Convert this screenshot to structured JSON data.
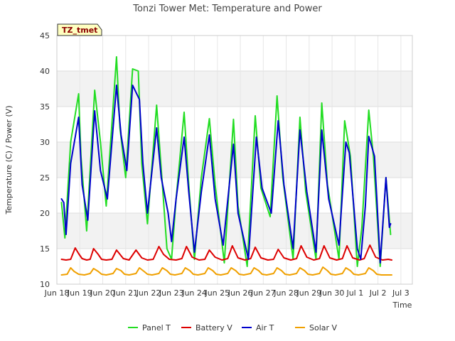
{
  "chart_data": {
    "type": "line",
    "title": "Tonzi Tower Met: Temperature and Power",
    "xlabel": "Time",
    "ylabel": "Temperature (C) / Power (V)",
    "ylim": [
      10,
      45
    ],
    "yticks": [
      10,
      15,
      20,
      25,
      30,
      35,
      40,
      45
    ],
    "xlim": [
      0,
      15.5
    ],
    "xticks": [
      {
        "pos": 0,
        "label": "Jun 18"
      },
      {
        "pos": 1,
        "label": "Jun 19"
      },
      {
        "pos": 2,
        "label": "Jun 20"
      },
      {
        "pos": 3,
        "label": "Jun 21"
      },
      {
        "pos": 4,
        "label": "Jun 22"
      },
      {
        "pos": 5,
        "label": "Jun 23"
      },
      {
        "pos": 6,
        "label": "Jun 24"
      },
      {
        "pos": 7,
        "label": "Jun 25"
      },
      {
        "pos": 8,
        "label": "Jun 26"
      },
      {
        "pos": 9,
        "label": "Jun 27"
      },
      {
        "pos": 10,
        "label": "Jun 28"
      },
      {
        "pos": 11,
        "label": "Jun 29"
      },
      {
        "pos": 12,
        "label": "Jun 30"
      },
      {
        "pos": 13,
        "label": "Jul 1"
      },
      {
        "pos": 14,
        "label": "Jul 2"
      },
      {
        "pos": 15,
        "label": "Jul 3"
      }
    ],
    "grid": true,
    "annotation": "TZ_tmet",
    "series": [
      {
        "name": "Panel T",
        "color": "#22dd22",
        "x": [
          0.2,
          0.35,
          0.6,
          0.95,
          1.05,
          1.3,
          1.65,
          1.9,
          2.15,
          2.6,
          2.75,
          3.0,
          3.3,
          3.55,
          3.7,
          3.95,
          4.35,
          4.6,
          4.8,
          5.0,
          5.2,
          5.55,
          5.75,
          6.0,
          6.3,
          6.65,
          6.9,
          7.3,
          7.7,
          7.9,
          8.3,
          8.65,
          8.9,
          9.3,
          9.6,
          9.85,
          10.3,
          10.6,
          10.85,
          11.3,
          11.55,
          11.8,
          12.3,
          12.55,
          12.8,
          13.1,
          13.3,
          13.6,
          13.8,
          14.1,
          14.35,
          14.55
        ],
        "y": [
          21.5,
          16.5,
          30,
          36.8,
          28,
          17.5,
          37.3,
          30,
          21,
          42,
          32,
          25,
          40.3,
          40,
          27,
          18.5,
          35.2,
          24,
          15,
          13.5,
          22,
          34.2,
          24,
          13.5,
          25,
          33.3,
          24,
          13,
          33.2,
          21,
          12.5,
          33.7,
          23.5,
          19.5,
          36.5,
          25,
          13.5,
          33.5,
          23,
          13.5,
          35.5,
          24,
          13.5,
          33,
          28,
          12.5,
          18,
          34.5,
          28,
          12.5,
          25,
          17
        ]
      },
      {
        "name": "Battery V",
        "color": "#dd0000",
        "x": [
          0.2,
          0.4,
          0.6,
          0.8,
          0.95,
          1.1,
          1.3,
          1.45,
          1.6,
          1.8,
          1.95,
          2.15,
          2.4,
          2.6,
          2.9,
          3.15,
          3.45,
          3.7,
          3.95,
          4.2,
          4.45,
          4.65,
          4.9,
          5.2,
          5.45,
          5.65,
          5.9,
          6.2,
          6.45,
          6.65,
          6.9,
          7.2,
          7.45,
          7.65,
          7.9,
          8.2,
          8.45,
          8.65,
          8.9,
          9.2,
          9.45,
          9.65,
          9.9,
          10.2,
          10.45,
          10.65,
          10.9,
          11.2,
          11.45,
          11.65,
          11.9,
          12.2,
          12.45,
          12.65,
          12.9,
          13.2,
          13.4,
          13.65,
          13.9,
          14.2,
          14.45,
          14.6
        ],
        "y": [
          13.5,
          13.4,
          13.5,
          15.1,
          14.3,
          13.6,
          13.4,
          13.5,
          15.0,
          14.2,
          13.5,
          13.4,
          13.5,
          14.8,
          13.6,
          13.4,
          14.8,
          13.7,
          13.4,
          13.5,
          15.3,
          14.2,
          13.5,
          13.4,
          13.6,
          15.3,
          13.8,
          13.4,
          13.5,
          14.8,
          13.8,
          13.4,
          13.6,
          15.4,
          13.7,
          13.4,
          13.6,
          15.2,
          13.7,
          13.4,
          13.5,
          14.9,
          13.7,
          13.4,
          13.6,
          15.4,
          13.8,
          13.4,
          13.6,
          15.4,
          13.7,
          13.4,
          13.6,
          15.4,
          13.7,
          13.4,
          13.6,
          15.5,
          13.8,
          13.4,
          13.5,
          13.4
        ]
      },
      {
        "name": "Air T",
        "color": "#0000cc",
        "x": [
          0.2,
          0.3,
          0.4,
          0.6,
          0.95,
          1.1,
          1.35,
          1.65,
          1.9,
          2.2,
          2.6,
          2.8,
          3.05,
          3.3,
          3.6,
          3.75,
          3.95,
          4.35,
          4.55,
          4.85,
          5.0,
          5.2,
          5.55,
          5.75,
          6.0,
          6.3,
          6.65,
          6.9,
          7.25,
          7.7,
          7.9,
          8.35,
          8.7,
          8.95,
          9.35,
          9.65,
          9.9,
          10.3,
          10.6,
          10.9,
          11.3,
          11.55,
          11.85,
          12.3,
          12.6,
          12.75,
          13.1,
          13.25,
          13.45,
          13.6,
          13.85,
          14.1,
          14.35,
          14.5,
          14.55
        ],
        "y": [
          22,
          21.5,
          17,
          27,
          33.5,
          24,
          19,
          34.4,
          26,
          22,
          38,
          31,
          26,
          38,
          36,
          27,
          20,
          32,
          25,
          20,
          16,
          22,
          30.7,
          23,
          14.5,
          23,
          31,
          22,
          15.5,
          29.7,
          20,
          13.5,
          30.7,
          23.5,
          20,
          33,
          24,
          15,
          31.7,
          23,
          14.5,
          31.7,
          22,
          15.5,
          30,
          28.5,
          15,
          13.5,
          21,
          30.8,
          28,
          13,
          25,
          18,
          18.5
        ]
      },
      {
        "name": "Solar V",
        "color": "#f0a000",
        "x": [
          0.2,
          0.45,
          0.6,
          0.75,
          0.95,
          1.2,
          1.45,
          1.6,
          1.8,
          1.95,
          2.15,
          2.45,
          2.6,
          2.8,
          2.95,
          3.15,
          3.45,
          3.6,
          3.8,
          3.95,
          4.15,
          4.45,
          4.6,
          4.8,
          4.95,
          5.15,
          5.45,
          5.6,
          5.8,
          5.95,
          6.15,
          6.45,
          6.6,
          6.8,
          6.95,
          7.15,
          7.45,
          7.6,
          7.8,
          7.95,
          8.15,
          8.45,
          8.6,
          8.8,
          8.95,
          9.15,
          9.45,
          9.6,
          9.8,
          9.95,
          10.15,
          10.45,
          10.6,
          10.8,
          10.95,
          11.15,
          11.45,
          11.6,
          11.8,
          11.95,
          12.15,
          12.45,
          12.6,
          12.8,
          12.95,
          13.15,
          13.45,
          13.6,
          13.8,
          13.95,
          14.15,
          14.4,
          14.6
        ],
        "y": [
          11.3,
          11.4,
          12.3,
          11.8,
          11.4,
          11.3,
          11.5,
          12.2,
          11.8,
          11.4,
          11.3,
          11.5,
          12.2,
          11.9,
          11.4,
          11.3,
          11.5,
          12.3,
          11.8,
          11.4,
          11.3,
          11.5,
          12.3,
          11.9,
          11.4,
          11.3,
          11.5,
          12.3,
          11.9,
          11.4,
          11.3,
          11.5,
          12.3,
          11.9,
          11.4,
          11.3,
          11.5,
          12.3,
          11.9,
          11.4,
          11.3,
          11.5,
          12.3,
          11.9,
          11.4,
          11.3,
          11.5,
          12.3,
          11.9,
          11.4,
          11.3,
          11.5,
          12.3,
          11.9,
          11.4,
          11.3,
          11.5,
          12.4,
          11.9,
          11.4,
          11.3,
          11.5,
          12.3,
          11.9,
          11.4,
          11.3,
          11.5,
          12.3,
          11.9,
          11.4,
          11.3,
          11.3,
          11.3
        ]
      }
    ]
  }
}
